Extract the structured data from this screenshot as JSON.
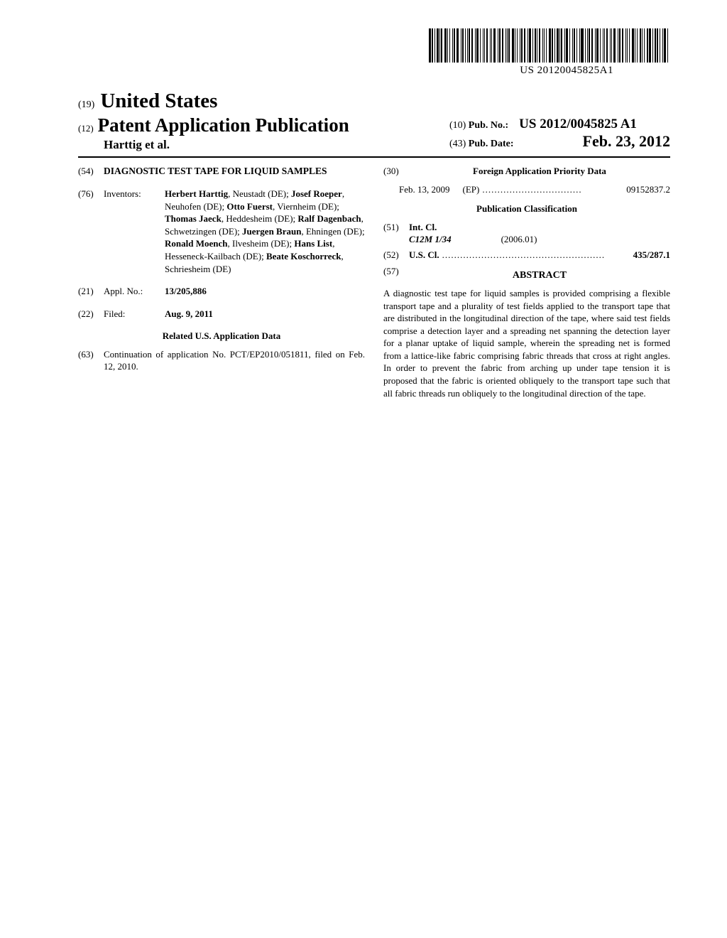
{
  "docNumber": "US 20120045825A1",
  "countryCode": "(19)",
  "countryName": "United States",
  "pubTypeCode": "(12)",
  "pubType": "Patent Application Publication",
  "authorsLine": "Harttig et al.",
  "pubNoCode": "(10)",
  "pubNoLabel": "Pub. No.:",
  "pubNoValue": "US 2012/0045825 A1",
  "pubDateCode": "(43)",
  "pubDateLabel": "Pub. Date:",
  "pubDateValue": "Feb. 23, 2012",
  "titleCode": "(54)",
  "title": "DIAGNOSTIC TEST TAPE FOR LIQUID SAMPLES",
  "inventorsCode": "(76)",
  "inventorsLabel": "Inventors:",
  "inventors": [
    {
      "name": "Herbert Harttig",
      "loc": ", Neustadt (DE); "
    },
    {
      "name": "Josef Roeper",
      "loc": ", Neuhofen (DE); "
    },
    {
      "name": "Otto Fuerst",
      "loc": ", Viernheim (DE); "
    },
    {
      "name": "Thomas Jaeck",
      "loc": ", Heddesheim (DE); "
    },
    {
      "name": "Ralf Dagenbach",
      "loc": ", Schwetzingen (DE); "
    },
    {
      "name": "Juergen Braun",
      "loc": ", Ehningen (DE); "
    },
    {
      "name": "Ronald Moench",
      "loc": ", Ilvesheim (DE); "
    },
    {
      "name": "Hans List",
      "loc": ", Hesseneck-Kailbach (DE); "
    },
    {
      "name": "Beate Koschorreck",
      "loc": ", Schriesheim (DE)"
    }
  ],
  "applNoCode": "(21)",
  "applNoLabel": "Appl. No.:",
  "applNoValue": "13/205,886",
  "filedCode": "(22)",
  "filedLabel": "Filed:",
  "filedValue": "Aug. 9, 2011",
  "relatedHeader": "Related U.S. Application Data",
  "continuationCode": "(63)",
  "continuationText": "Continuation of application No. PCT/EP2010/051811, filed on Feb. 12, 2010.",
  "foreignCode": "(30)",
  "foreignHeader": "Foreign Application Priority Data",
  "foreignDate": "Feb. 13, 2009",
  "foreignCountry": "(EP)",
  "foreignApp": "09152837.2",
  "pubClassHeader": "Publication Classification",
  "intClCode": "(51)",
  "intClLabel": "Int. Cl.",
  "intClValue": "C12M 1/34",
  "intClDate": "(2006.01)",
  "usClCode": "(52)",
  "usClLabel": "U.S. Cl.",
  "usClValue": "435/287.1",
  "abstractCode": "(57)",
  "abstractLabel": "ABSTRACT",
  "abstractText": "A diagnostic test tape for liquid samples is provided comprising a flexible transport tape and a plurality of test fields applied to the transport tape that are distributed in the longitudinal direction of the tape, where said test fields comprise a detection layer and a spreading net spanning the detection layer for a planar uptake of liquid sample, wherein the spreading net is formed from a lattice-like fabric comprising fabric threads that cross at right angles. In order to prevent the fabric from arching up under tape tension it is proposed that the fabric is oriented obliquely to the transport tape such that all fabric threads run obliquely to the longitudinal direction of the tape."
}
